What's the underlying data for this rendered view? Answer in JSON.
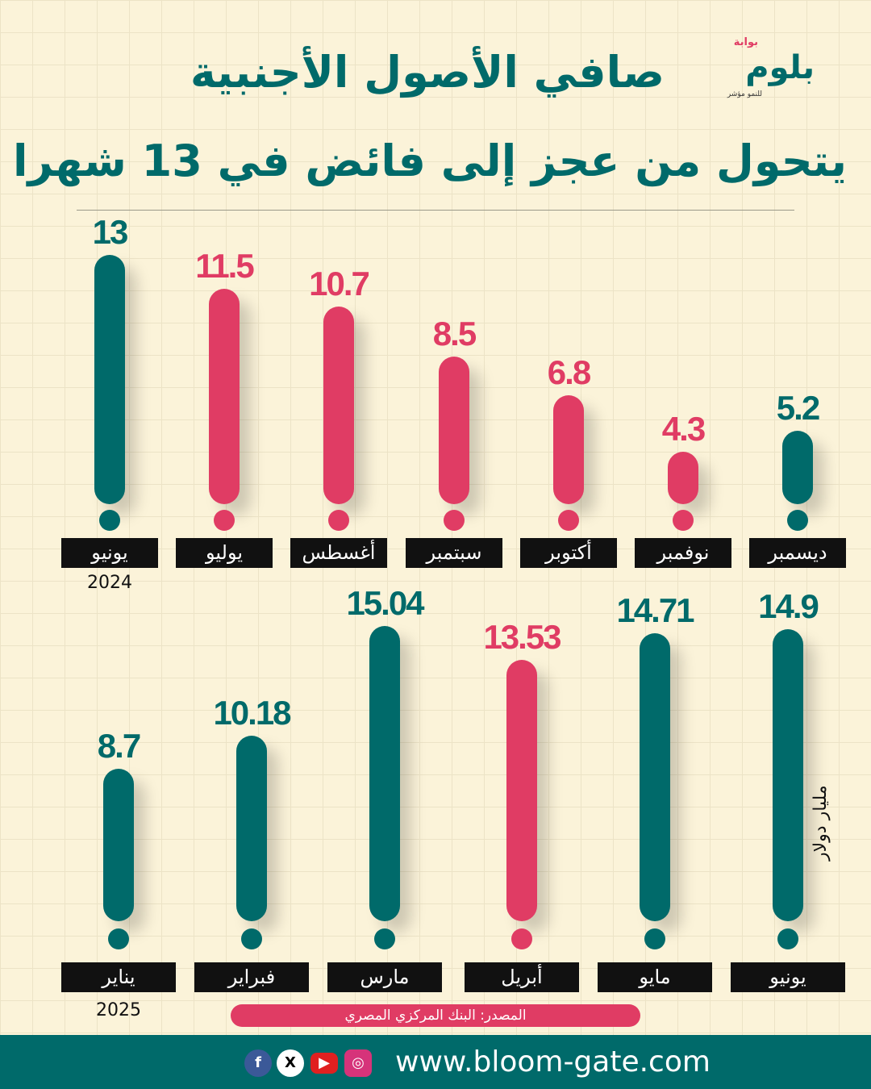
{
  "header": {
    "title_line1": "صافي الأصول الأجنبية",
    "title_line2": "يتحول من عجز إلى فائض في 13 شهرا"
  },
  "logo": {
    "top": "بوابة",
    "main": "بلوم",
    "sub": "للنمو مؤشر"
  },
  "colors": {
    "surplus": "#006a6a",
    "deficit": "#e03c64"
  },
  "chart_data": [
    {
      "type": "bar",
      "year": "2024",
      "categories": [
        "يونيو",
        "يوليو",
        "أغسطس",
        "سبتمبر",
        "أكتوبر",
        "نوفمبر",
        "ديسمبر"
      ],
      "values": [
        13,
        11.5,
        10.7,
        8.5,
        6.8,
        4.3,
        5.2
      ],
      "labels": [
        "13",
        "11.5",
        "10.7",
        "8.5",
        "6.8",
        "4.3",
        "5.2"
      ],
      "sign": [
        "surplus",
        "deficit",
        "deficit",
        "deficit",
        "deficit",
        "deficit",
        "surplus"
      ]
    },
    {
      "type": "bar",
      "year": "2025",
      "categories": [
        "يناير",
        "فبراير",
        "مارس",
        "أبريل",
        "مايو",
        "يونيو"
      ],
      "values": [
        8.7,
        10.18,
        15.04,
        13.53,
        14.71,
        14.9
      ],
      "labels": [
        "8.7",
        "10.18",
        "15.04",
        "13.53",
        "14.71",
        "14.9"
      ],
      "sign": [
        "surplus",
        "surplus",
        "surplus",
        "deficit",
        "surplus",
        "surplus"
      ],
      "unit": "مليار دولار"
    }
  ],
  "source": "المصدر: البنك المركزي المصري",
  "footer": {
    "url": "www.bloom-gate.com",
    "social": [
      "facebook-icon",
      "x-icon",
      "youtube-icon",
      "instagram-icon"
    ]
  }
}
